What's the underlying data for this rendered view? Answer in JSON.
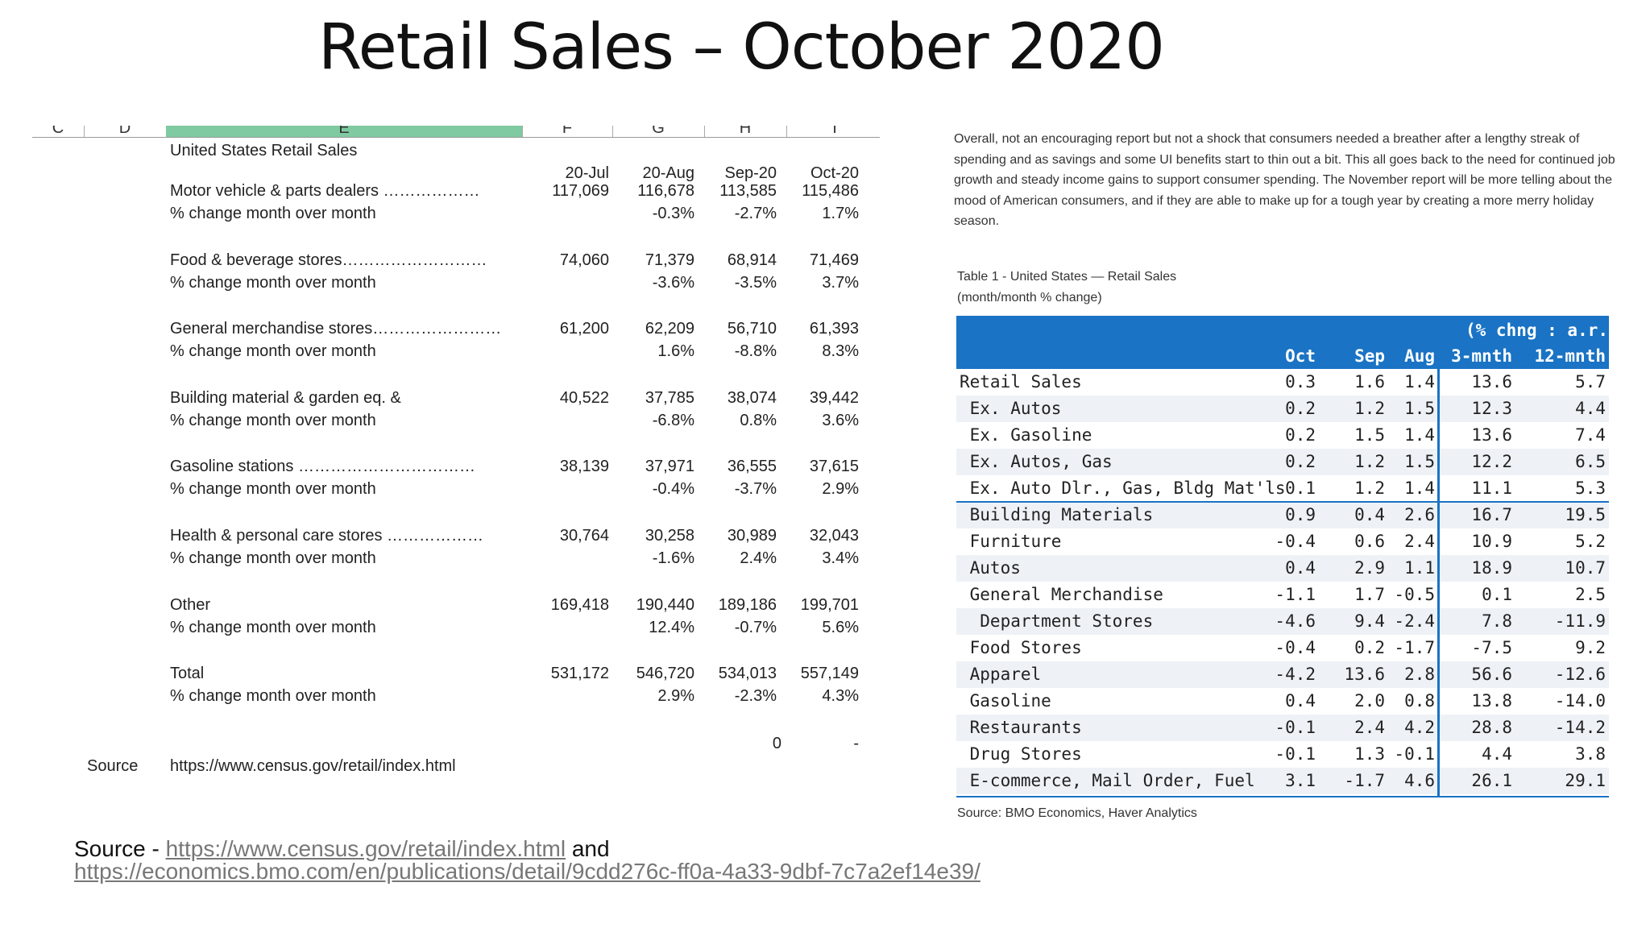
{
  "title": "Retail Sales – October 2020",
  "sheet": {
    "col_headers": [
      "C",
      "D",
      "E",
      "F",
      "G",
      "H",
      "I"
    ],
    "heading": "United States Retail Sales",
    "periods": [
      "20-Jul",
      "20-Aug",
      "Sep-20",
      "Oct-20"
    ],
    "rows": [
      {
        "label": "Motor vehicle & parts dealers ………………",
        "values": [
          "117,069",
          "116,678",
          "113,585",
          "115,486"
        ],
        "pct_label": "% change month over month",
        "pct": [
          "",
          "-0.3%",
          "-2.7%",
          "1.7%"
        ]
      },
      {
        "label": "Food & beverage stores………………………",
        "values": [
          "74,060",
          "71,379",
          "68,914",
          "71,469"
        ],
        "pct_label": "% change month over month",
        "pct": [
          "",
          "-3.6%",
          "-3.5%",
          "3.7%"
        ]
      },
      {
        "label": "General merchandise stores……………………",
        "values": [
          "61,200",
          "62,209",
          "56,710",
          "61,393"
        ],
        "pct_label": "% change month over month",
        "pct": [
          "",
          "1.6%",
          "-8.8%",
          "8.3%"
        ]
      },
      {
        "label": "Building material & garden eq. &",
        "values": [
          "40,522",
          "37,785",
          "38,074",
          "39,442"
        ],
        "pct_label": "% change month over month",
        "pct": [
          "",
          "-6.8%",
          "0.8%",
          "3.6%"
        ]
      },
      {
        "label": "Gasoline stations ……………………………",
        "values": [
          "38,139",
          "37,971",
          "36,555",
          "37,615"
        ],
        "pct_label": "% change month over month",
        "pct": [
          "",
          "-0.4%",
          "-3.7%",
          "2.9%"
        ]
      },
      {
        "label": "Health & personal care stores ………………",
        "values": [
          "30,764",
          "30,258",
          "30,989",
          "32,043"
        ],
        "pct_label": "% change month over month",
        "pct": [
          "",
          "-1.6%",
          "2.4%",
          "3.4%"
        ]
      },
      {
        "label": "Other",
        "values": [
          "169,418",
          "190,440",
          "189,186",
          "199,701"
        ],
        "pct_label": "% change month over month",
        "pct": [
          "",
          "12.4%",
          "-0.7%",
          "5.6%"
        ]
      },
      {
        "label": "Total",
        "values": [
          "531,172",
          "546,720",
          "534,013",
          "557,149"
        ],
        "pct_label": "% change month over month",
        "pct": [
          "",
          "2.9%",
          "-2.3%",
          "4.3%"
        ]
      }
    ],
    "extra_values": [
      "0",
      "-"
    ],
    "source_label": "Source",
    "source_url": "https://www.census.gov/retail/index.html"
  },
  "commentary": "Overall, not an encouraging report but not a shock that consumers needed a breather after a lengthy streak of spending and as savings and some UI benefits start to thin out a bit. This all goes back to the need for continued job growth and steady income gains to support consumer spending. The November report will be more telling about the mood of American consumers, and if they are able to make up for a tough year by creating a more merry holiday season.",
  "bmo_table": {
    "caption_line1": "Table 1 - United States — Retail Sales",
    "caption_line2": "(month/month % change)",
    "group_header": "(% chng : a.r.)",
    "columns": [
      "Oct",
      "Sep",
      "Aug",
      "3-mnth",
      "12-mnth"
    ],
    "rows": [
      {
        "label": "Retail Sales",
        "values": [
          "0.3",
          "1.6",
          "1.4",
          "13.6",
          "5.7"
        ]
      },
      {
        "label": " Ex. Autos",
        "values": [
          "0.2",
          "1.2",
          "1.5",
          "12.3",
          "4.4"
        ]
      },
      {
        "label": " Ex. Gasoline",
        "values": [
          "0.2",
          "1.5",
          "1.4",
          "13.6",
          "7.4"
        ]
      },
      {
        "label": " Ex. Autos, Gas",
        "values": [
          "0.2",
          "1.2",
          "1.5",
          "12.2",
          "6.5"
        ]
      },
      {
        "label": " Ex. Auto Dlr., Gas, Bldg Mat'ls",
        "values": [
          "0.1",
          "1.2",
          "1.4",
          "11.1",
          "5.3"
        ]
      },
      {
        "label": " Building Materials",
        "values": [
          "0.9",
          "0.4",
          "2.6",
          "16.7",
          "19.5"
        ]
      },
      {
        "label": " Furniture",
        "values": [
          "-0.4",
          "0.6",
          "2.4",
          "10.9",
          "5.2"
        ]
      },
      {
        "label": " Autos",
        "values": [
          "0.4",
          "2.9",
          "1.1",
          "18.9",
          "10.7"
        ]
      },
      {
        "label": " General Merchandise",
        "values": [
          "-1.1",
          "1.7",
          "-0.5",
          "0.1",
          "2.5"
        ]
      },
      {
        "label": "  Department Stores",
        "values": [
          "-4.6",
          "9.4",
          "-2.4",
          "7.8",
          "-11.9"
        ]
      },
      {
        "label": " Food Stores",
        "values": [
          "-0.4",
          "0.2",
          "-1.7",
          "-7.5",
          "9.2"
        ]
      },
      {
        "label": " Apparel",
        "values": [
          "-4.2",
          "13.6",
          "2.8",
          "56.6",
          "-12.6"
        ]
      },
      {
        "label": " Gasoline",
        "values": [
          "0.4",
          "2.0",
          "0.8",
          "13.8",
          "-14.0"
        ]
      },
      {
        "label": " Restaurants",
        "values": [
          "-0.1",
          "2.4",
          "4.2",
          "28.8",
          "-14.2"
        ]
      },
      {
        "label": " Drug Stores",
        "values": [
          "-0.1",
          "1.3",
          "-0.1",
          "4.4",
          "3.8"
        ]
      },
      {
        "label": " E-commerce, Mail Order, Fuel",
        "values": [
          "3.1",
          "-1.7",
          "4.6",
          "26.1",
          "29.1"
        ]
      }
    ],
    "source": "Source: BMO Economics, Haver Analytics",
    "header_color": "#1a73c4"
  },
  "footer": {
    "prefix": "Source - ",
    "link1": "https://www.census.gov/retail/index.html",
    "and": " and",
    "link2": "https://economics.bmo.com/en/publications/detail/9cdd276c-ff0a-4a33-9dbf-7c7a2ef14e39/"
  }
}
